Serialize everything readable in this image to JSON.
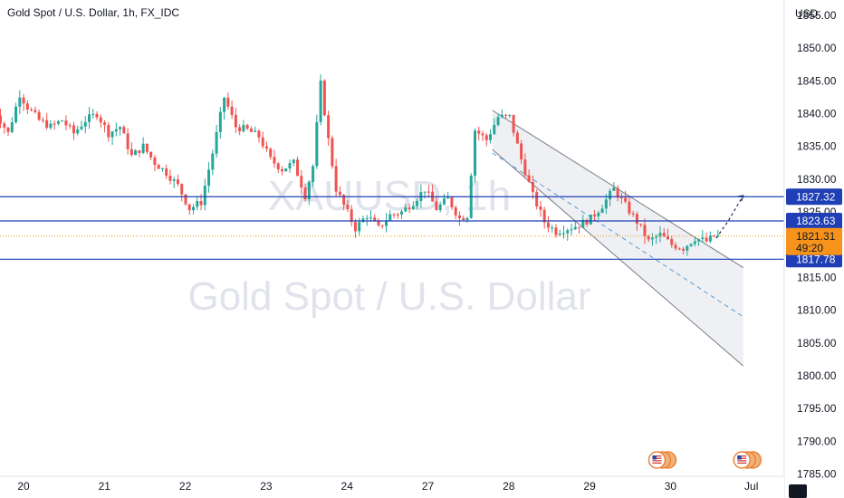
{
  "header": {
    "title": "Gold Spot / U.S. Dollar, 1h, FX_IDC"
  },
  "watermark": {
    "symbol": "XAUUSD, 1h",
    "description": "Gold Spot / U.S. Dollar"
  },
  "price_axis": {
    "currency": "USD"
  },
  "colors": {
    "up": "#26a69a",
    "down": "#ef5350",
    "level_line": "#1e3fb5",
    "level_tag": "#1e3fb5",
    "current_price": "#f7931a",
    "channel": "#787b86",
    "channel_mid": "#5b9bd5",
    "channel_fill": "#eef0f3",
    "grid": "#f0f3fa",
    "axis_text": "#131722",
    "watermark": "#e0e3eb",
    "projection": "#1b2a5c"
  },
  "chart_data": {
    "type": "candlestick",
    "timeframe": "1h",
    "x_tick_labels": [
      "20",
      "21",
      "22",
      "23",
      "24",
      "27",
      "28",
      "29",
      "30",
      "Jul"
    ],
    "y_tick_labels": [
      "1855.00",
      "1850.00",
      "1845.00",
      "1840.00",
      "1835.00",
      "1830.00",
      "1825.00",
      "1815.00",
      "1810.00",
      "1805.00",
      "1800.00",
      "1795.00",
      "1790.00",
      "1785.00"
    ],
    "ylim": [
      1783,
      1859
    ],
    "grid": false,
    "horizontal_levels": [
      1827.32,
      1823.63,
      1817.78
    ],
    "level_labels": [
      "1827.32",
      "1823.63",
      "1817.78"
    ],
    "current_price": {
      "value": 1821.31,
      "label": "1821.31",
      "countdown": "49:20"
    },
    "price_waypoints": [
      [
        0,
        1837.5
      ],
      [
        2,
        1840.0
      ],
      [
        5,
        1837.0
      ],
      [
        8,
        1843.0
      ],
      [
        10,
        1841.0
      ],
      [
        13,
        1839.0
      ],
      [
        16,
        1838.0
      ],
      [
        19,
        1839.0
      ],
      [
        22,
        1837.0
      ],
      [
        25,
        1839.0
      ],
      [
        28,
        1840.0
      ],
      [
        31,
        1837.0
      ],
      [
        34,
        1838.0
      ],
      [
        37,
        1833.5
      ],
      [
        40,
        1835.0
      ],
      [
        43,
        1832.5
      ],
      [
        46,
        1831.0
      ],
      [
        49,
        1829.0
      ],
      [
        52,
        1825.5
      ],
      [
        55,
        1826.5
      ],
      [
        58,
        1834.0
      ],
      [
        61,
        1842.5
      ],
      [
        64,
        1838.0
      ],
      [
        67,
        1837.5
      ],
      [
        70,
        1836.5
      ],
      [
        73,
        1833.0
      ],
      [
        76,
        1831.5
      ],
      [
        79,
        1832.5
      ],
      [
        82,
        1827.5
      ],
      [
        84,
        1832.0
      ],
      [
        86,
        1844.5
      ],
      [
        88,
        1836.0
      ],
      [
        90,
        1828.5
      ],
      [
        92,
        1826.0
      ],
      [
        95,
        1822.5
      ],
      [
        98,
        1824.5
      ],
      [
        101,
        1822.5
      ],
      [
        104,
        1824.5
      ],
      [
        107,
        1825.0
      ],
      [
        110,
        1826.5
      ],
      [
        113,
        1828.5
      ],
      [
        116,
        1825.5
      ],
      [
        119,
        1827.0
      ],
      [
        122,
        1824.0
      ],
      [
        124,
        1824.5
      ],
      [
        126,
        1837.5
      ],
      [
        129,
        1836.0
      ],
      [
        132,
        1839.5
      ],
      [
        135,
        1839.5
      ],
      [
        138,
        1833.0
      ],
      [
        141,
        1827.5
      ],
      [
        144,
        1823.5
      ],
      [
        147,
        1822.0
      ],
      [
        150,
        1822.5
      ],
      [
        153,
        1823.0
      ],
      [
        156,
        1824.0
      ],
      [
        159,
        1826.0
      ],
      [
        162,
        1828.5
      ],
      [
        165,
        1826.0
      ],
      [
        168,
        1823.5
      ],
      [
        171,
        1820.5
      ],
      [
        174,
        1821.5
      ],
      [
        177,
        1820.0
      ],
      [
        180,
        1819.5
      ],
      [
        183,
        1821.0
      ],
      [
        186,
        1820.5
      ],
      [
        188,
        1821.31
      ]
    ],
    "candle_count": 189,
    "day_boundaries": [
      0,
      21,
      42,
      63,
      84,
      105,
      126,
      147,
      168,
      189,
      210
    ],
    "channel": {
      "upper": {
        "from": [
          130,
          1840.5
        ],
        "to": [
          195,
          1816.5
        ]
      },
      "lower": {
        "from": [
          130,
          1834.5
        ],
        "to": [
          195,
          1801.5
        ]
      },
      "median": {
        "from": [
          130,
          1834.0
        ],
        "to": [
          195,
          1809.0
        ]
      }
    },
    "projection_path": [
      [
        188,
        1821.0
      ],
      [
        191,
        1823.5
      ],
      [
        195,
        1827.5
      ]
    ]
  },
  "event_icons": [
    {
      "name": "us-flag-event-icon",
      "day_index": 7.9
    },
    {
      "name": "us-flag-event-icon",
      "day_index": 8.95
    }
  ]
}
